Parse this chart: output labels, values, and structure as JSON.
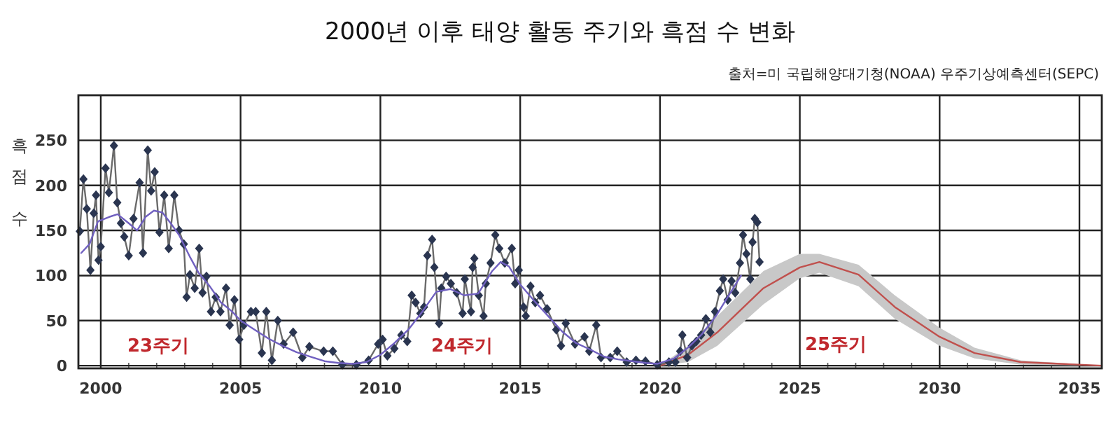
{
  "chart_data": {
    "type": "line",
    "title": "2000년 이후 태양 활동 주기와 흑점 수 변화",
    "ylabel": "흑점 수",
    "annotations": [
      "출처=미 국립해양대기청(NOAA) 우주기상예측센터(SEPC)",
      "23주기",
      "24주기",
      "25주기"
    ],
    "xlim": [
      1999.2,
      2035.8
    ],
    "ylim": [
      -3,
      300
    ],
    "xticks": [
      2000,
      2005,
      2010,
      2015,
      2020,
      2025,
      2030,
      2035
    ],
    "yticks": [
      0,
      50,
      100,
      150,
      200,
      250
    ],
    "grid": true,
    "series": [
      {
        "color": "#2a3550",
        "marker": "diamond",
        "x": [
          1999.25,
          1999.38,
          1999.5,
          1999.63,
          1999.75,
          1999.83,
          1999.92,
          2000.0,
          2000.17,
          2000.29,
          2000.47,
          2000.59,
          2000.72,
          2000.84,
          2001.0,
          2001.17,
          2001.39,
          2001.51,
          2001.68,
          2001.8,
          2001.93,
          2002.1,
          2002.27,
          2002.43,
          2002.63,
          2002.8,
          2002.97,
          2003.07,
          2003.19,
          2003.36,
          2003.52,
          2003.64,
          2003.78,
          2003.94,
          2004.11,
          2004.28,
          2004.48,
          2004.61,
          2004.78,
          2004.95,
          2005.12,
          2005.37,
          2005.54,
          2005.76,
          2005.92,
          2006.12,
          2006.33,
          2006.54,
          2006.88,
          2007.21,
          2007.46,
          2007.97,
          2008.3,
          2008.64,
          2009.14,
          2009.58,
          2009.92,
          2010.08,
          2010.25,
          2010.5,
          2010.75,
          2010.96,
          2011.12,
          2011.26,
          2011.43,
          2011.56,
          2011.68,
          2011.85,
          2011.93,
          2012.1,
          2012.18,
          2012.35,
          2012.52,
          2012.73,
          2012.94,
          2013.02,
          2013.24,
          2013.3,
          2013.36,
          2013.52,
          2013.69,
          2013.77,
          2013.94,
          2014.11,
          2014.25,
          2014.45,
          2014.7,
          2014.82,
          2014.95,
          2015.12,
          2015.2,
          2015.37,
          2015.54,
          2015.71,
          2015.96,
          2016.29,
          2016.46,
          2016.63,
          2016.96,
          2017.3,
          2017.47,
          2017.72,
          2017.89,
          2018.22,
          2018.47,
          2018.81,
          2019.14,
          2019.48,
          2019.9,
          2020.32,
          2020.55,
          2020.72,
          2020.8,
          2020.97,
          2021.14,
          2021.3,
          2021.47,
          2021.64,
          2021.8,
          2021.97,
          2022.14,
          2022.26,
          2022.42,
          2022.56,
          2022.69,
          2022.86,
          2022.97,
          2023.09,
          2023.23,
          2023.31,
          2023.39,
          2023.48,
          2023.56
        ],
        "values": [
          149,
          207,
          174,
          106,
          169,
          189,
          117,
          132,
          219,
          192,
          244,
          181,
          158,
          143,
          122,
          163,
          203,
          125,
          239,
          194,
          215,
          148,
          189,
          130,
          189,
          150,
          135,
          76,
          101,
          86,
          130,
          81,
          99,
          60,
          76,
          60,
          86,
          45,
          73,
          29,
          45,
          60,
          60,
          14,
          60,
          6,
          50,
          24,
          37,
          9,
          21,
          16,
          16,
          1,
          1,
          6,
          24,
          29,
          11,
          19,
          34,
          27,
          78,
          70,
          58,
          65,
          122,
          140,
          109,
          47,
          86,
          99,
          91,
          81,
          58,
          96,
          60,
          109,
          119,
          78,
          55,
          91,
          114,
          145,
          130,
          114,
          130,
          91,
          106,
          65,
          55,
          88,
          70,
          78,
          63,
          40,
          22,
          47,
          24,
          32,
          16,
          45,
          9,
          9,
          16,
          4,
          6,
          5,
          1,
          4,
          4,
          16,
          34,
          9,
          22,
          27,
          34,
          52,
          37,
          60,
          83,
          96,
          73,
          94,
          81,
          114,
          145,
          124,
          96,
          137,
          163,
          159,
          115
        ]
      },
      {
        "color": "#7060c0",
        "marker": "none",
        "x": [
          1999.3,
          1999.6,
          1999.9,
          2000.3,
          2000.6,
          2001.0,
          2001.3,
          2001.6,
          2001.9,
          2002.2,
          2002.5,
          2002.8,
          2003.2,
          2003.5,
          2003.9,
          2004.3,
          2004.7,
          2005.0,
          2005.5,
          2006.0,
          2006.5,
          2007.0,
          2007.5,
          2008.0,
          2008.5,
          2009.0,
          2009.5,
          2010.0,
          2010.5,
          2011.0,
          2011.5,
          2012.0,
          2012.5,
          2013.0,
          2013.5,
          2014.0,
          2014.3,
          2014.6,
          2015.0,
          2015.5,
          2016.0,
          2016.5,
          2017.0,
          2017.5,
          2018.0,
          2018.5,
          2019.0,
          2019.5,
          2019.9,
          2020.5,
          2021.0,
          2021.5,
          2022.0,
          2022.5,
          2022.9
        ],
        "values": [
          125,
          135,
          160,
          165,
          168,
          158,
          150,
          165,
          172,
          170,
          158,
          145,
          120,
          103,
          88,
          70,
          60,
          50,
          40,
          30,
          22,
          15,
          10,
          5,
          3,
          2,
          4,
          12,
          25,
          40,
          60,
          82,
          85,
          78,
          80,
          105,
          115,
          110,
          90,
          72,
          55,
          38,
          25,
          18,
          10,
          7,
          5,
          3,
          2,
          8,
          20,
          35,
          55,
          80,
          100
        ]
      },
      {
        "color": "#c0504d",
        "marker": "none",
        "x": [
          2020.0,
          2021.0,
          2022.05,
          2023.7,
          2025.0,
          2025.7,
          2027.1,
          2028.4,
          2030.0,
          2031.25,
          2032.9,
          2035.8
        ],
        "values": [
          0,
          12,
          37,
          86,
          109,
          115,
          101,
          65,
          32,
          14,
          4,
          0
        ],
        "lower": [
          0,
          4,
          22,
          68,
          97,
          103,
          88,
          52,
          22,
          8,
          1,
          0
        ],
        "upper": [
          0,
          22,
          55,
          105,
          124,
          124,
          112,
          78,
          42,
          20,
          6,
          0
        ]
      }
    ]
  }
}
